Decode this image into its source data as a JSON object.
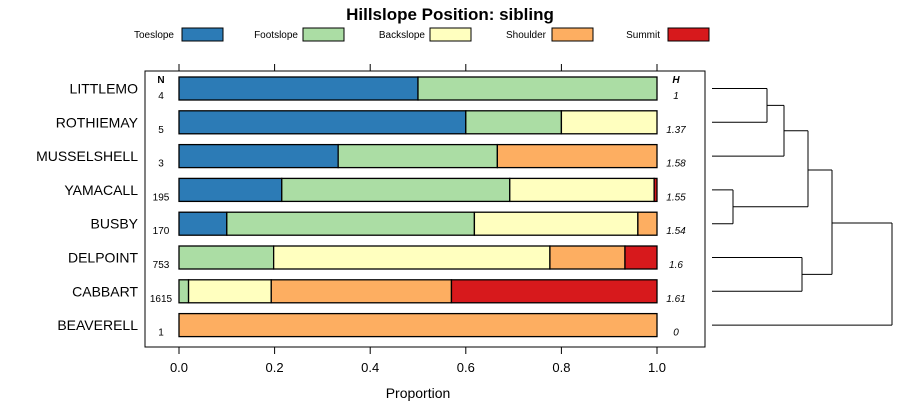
{
  "chart_data": {
    "type": "bar",
    "orientation": "horizontal",
    "stacked": true,
    "title": "Hillslope Position: sibling",
    "xlabel": "Proportion",
    "xlim": [
      0,
      1
    ],
    "xticks": [
      "0.0",
      "0.2",
      "0.4",
      "0.6",
      "0.8",
      "1.0"
    ],
    "n_header": "N",
    "h_header": "H",
    "legend_position": "top",
    "series": [
      {
        "name": "Toeslope",
        "color": "#2c7bb6"
      },
      {
        "name": "Footslope",
        "color": "#abdda4"
      },
      {
        "name": "Backslope",
        "color": "#ffffbf"
      },
      {
        "name": "Shoulder",
        "color": "#fdae61"
      },
      {
        "name": "Summit",
        "color": "#d7191c"
      }
    ],
    "categories": [
      "LITTLEMO",
      "ROTHIEMAY",
      "MUSSELSHELL",
      "YAMACALL",
      "BUSBY",
      "DELPOINT",
      "CABBART",
      "BEAVERELL"
    ],
    "n": [
      "4",
      "5",
      "3",
      "195",
      "170",
      "753",
      "1615",
      "1"
    ],
    "h": [
      "1",
      "1.37",
      "1.58",
      "1.55",
      "1.54",
      "1.6",
      "1.61",
      "0"
    ],
    "values": [
      [
        0.5,
        0.5,
        0.0,
        0.0,
        0.0
      ],
      [
        0.6,
        0.2,
        0.2,
        0.0,
        0.0
      ],
      [
        0.333,
        0.333,
        0.0,
        0.334,
        0.0
      ],
      [
        0.215,
        0.477,
        0.302,
        0.0,
        0.006
      ],
      [
        0.1,
        0.518,
        0.342,
        0.04,
        0.0
      ],
      [
        0.0,
        0.198,
        0.578,
        0.157,
        0.067
      ],
      [
        0.0,
        0.02,
        0.173,
        0.377,
        0.43
      ],
      [
        0.0,
        0.0,
        0.0,
        1.0,
        0.0
      ]
    ],
    "dendrogram": true
  }
}
